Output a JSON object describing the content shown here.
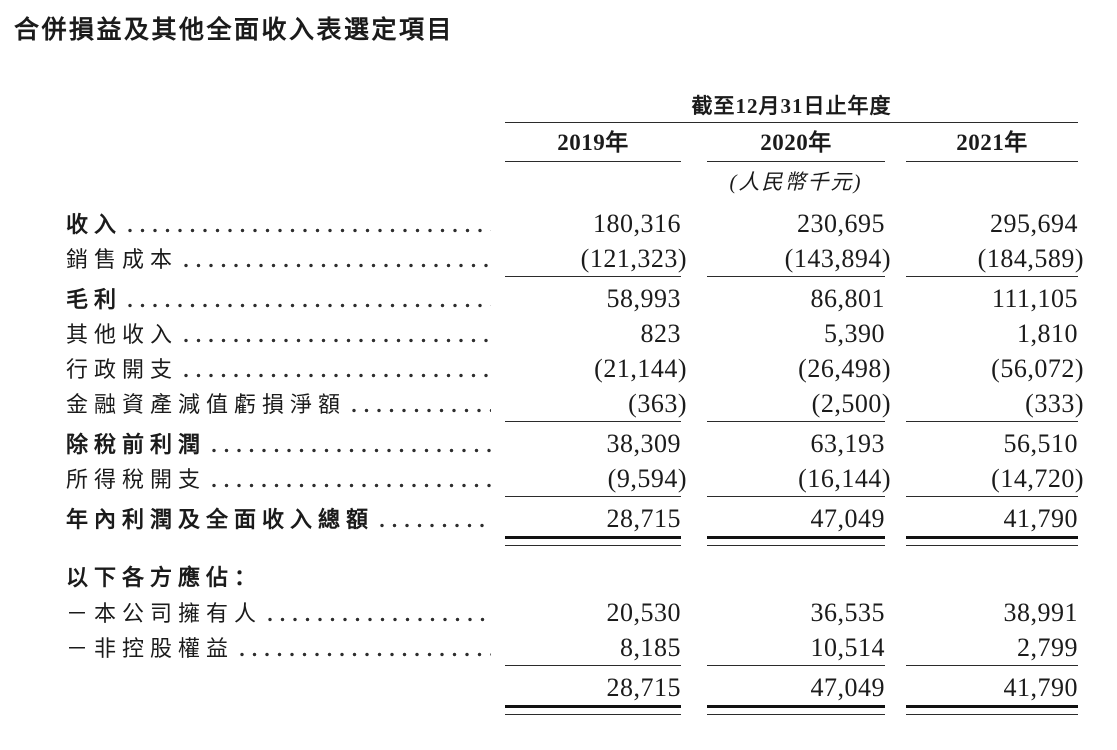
{
  "title": "合併損益及其他全面收入表選定項目",
  "table": {
    "period_header": "截至12月31日止年度",
    "columns": [
      "2019年",
      "2020年",
      "2021年"
    ],
    "unit_note": "(人民幣千元)",
    "rows": [
      {
        "label": "收入",
        "bold": true,
        "dots": true,
        "values": [
          "180,316",
          "230,695",
          "295,694"
        ],
        "rule": "none"
      },
      {
        "label": "銷售成本",
        "bold": false,
        "dots": true,
        "values": [
          "(121,323)",
          "(143,894)",
          "(184,589)"
        ],
        "rule": "single"
      },
      {
        "label": "毛利",
        "bold": true,
        "dots": true,
        "values": [
          "58,993",
          "86,801",
          "111,105"
        ],
        "rule": "none"
      },
      {
        "label": "其他收入",
        "bold": false,
        "dots": true,
        "values": [
          "823",
          "5,390",
          "1,810"
        ],
        "rule": "none"
      },
      {
        "label": "行政開支",
        "bold": false,
        "dots": true,
        "values": [
          "(21,144)",
          "(26,498)",
          "(56,072)"
        ],
        "rule": "none"
      },
      {
        "label": "金融資產減值虧損淨額",
        "bold": false,
        "dots": true,
        "values": [
          "(363)",
          "(2,500)",
          "(333)"
        ],
        "rule": "single"
      },
      {
        "label": "除稅前利潤",
        "bold": true,
        "dots": true,
        "values": [
          "38,309",
          "63,193",
          "56,510"
        ],
        "rule": "none"
      },
      {
        "label": "所得稅開支",
        "bold": false,
        "dots": true,
        "values": [
          "(9,594)",
          "(16,144)",
          "(14,720)"
        ],
        "rule": "single"
      },
      {
        "label": "年內利潤及全面收入總額",
        "bold": true,
        "dots": true,
        "values": [
          "28,715",
          "47,049",
          "41,790"
        ],
        "rule": "double",
        "gap_after": true
      },
      {
        "label": "以下各方應佔：",
        "bold": true,
        "dots": false,
        "values": [],
        "rule": "none"
      },
      {
        "label": "－本公司擁有人",
        "bold": false,
        "dots": true,
        "values": [
          "20,530",
          "36,535",
          "38,991"
        ],
        "rule": "none"
      },
      {
        "label": "－非控股權益",
        "bold": false,
        "dots": true,
        "values": [
          "8,185",
          "10,514",
          "2,799"
        ],
        "rule": "single"
      },
      {
        "label": "",
        "bold": false,
        "dots": false,
        "values": [
          "28,715",
          "47,049",
          "41,790"
        ],
        "rule": "double"
      }
    ]
  }
}
